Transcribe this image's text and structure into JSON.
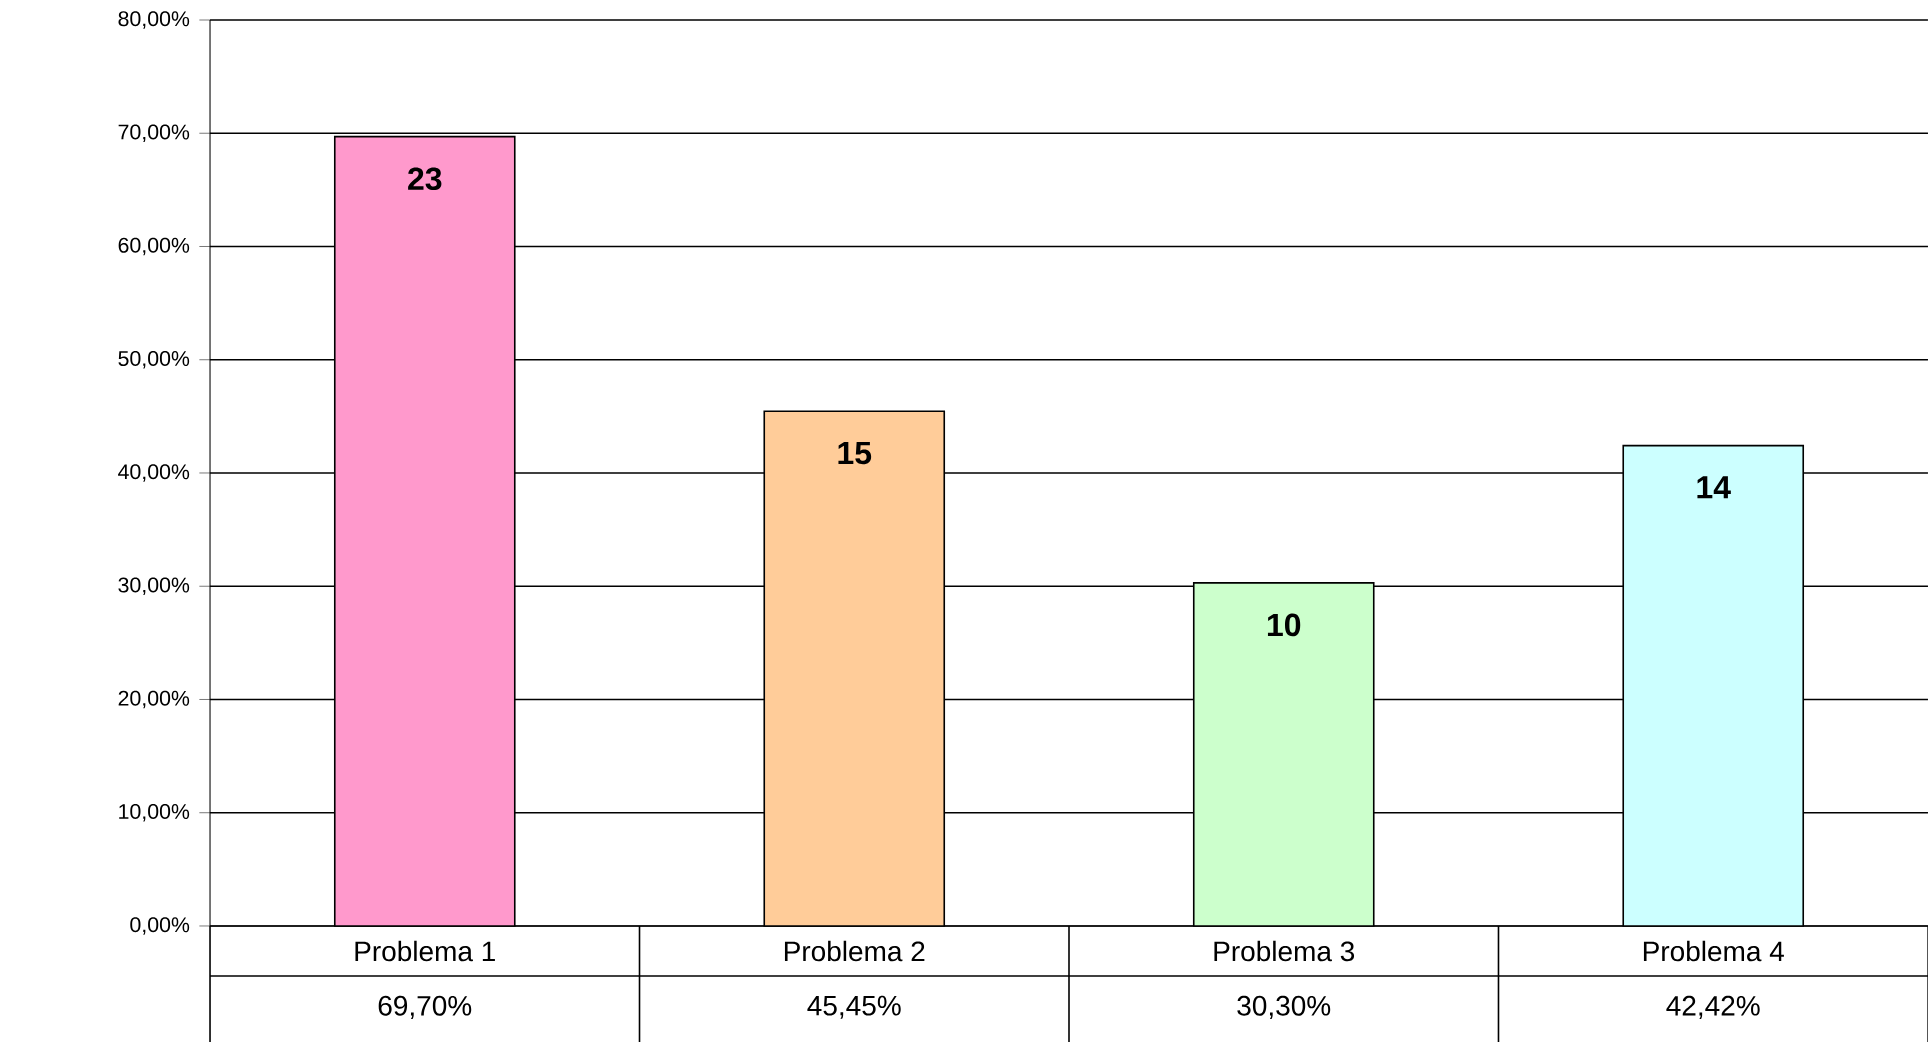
{
  "chart_data": {
    "type": "bar",
    "categories": [
      "Problema 1",
      "Problema 2",
      "Problema 3",
      "Problema 4"
    ],
    "values": [
      69.7,
      45.45,
      30.3,
      42.42
    ],
    "colors": [
      "#ff99cc",
      "#ffcc99",
      "#ccffcc",
      "#ccffff"
    ],
    "value_labels": [
      "69,70%",
      "45,45%",
      "30,30%",
      "42,42%"
    ],
    "annotations": [
      {
        "text": "23",
        "x": "Problema 1",
        "y": 69.7
      },
      {
        "text": "15",
        "x": "Problema 2",
        "y": 45.45
      },
      {
        "text": "10",
        "x": "Problema 3",
        "y": 30.3
      },
      {
        "text": "14",
        "x": "Problema 4",
        "y": 42.42
      }
    ],
    "ylim": [
      0,
      80
    ],
    "yticks": [
      {
        "value": 0,
        "label": "0,00%"
      },
      {
        "value": 10,
        "label": "10,00%"
      },
      {
        "value": 20,
        "label": "20,00%"
      },
      {
        "value": 30,
        "label": "30,00%"
      },
      {
        "value": 40,
        "label": "40,00%"
      },
      {
        "value": 50,
        "label": "50,00%"
      },
      {
        "value": 60,
        "label": "60,00%"
      },
      {
        "value": 70,
        "label": "70,00%"
      },
      {
        "value": 80,
        "label": "80,00%"
      }
    ],
    "grid": "y"
  }
}
